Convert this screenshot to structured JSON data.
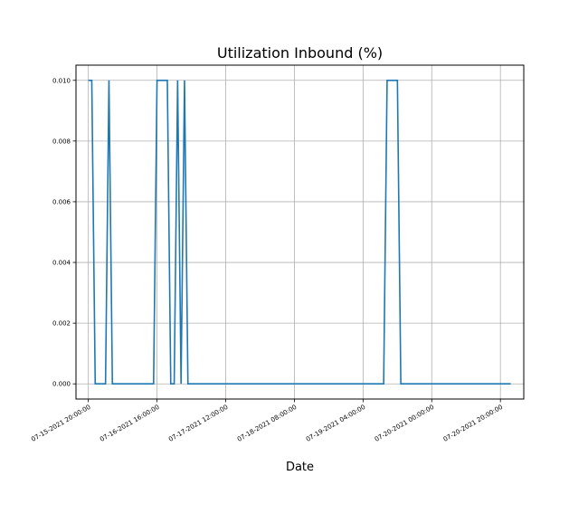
{
  "chart_data": {
    "type": "line",
    "title": "Utilization Inbound (%)",
    "xlabel": "Date",
    "ylabel": "",
    "ylim": [
      -0.0005,
      0.0105
    ],
    "xlim": [
      "07-15-2021 16:24",
      "07-21-2021 02:48"
    ],
    "yticks": [
      0.0,
      0.002,
      0.004,
      0.006,
      0.008,
      0.01
    ],
    "ytick_labels": [
      "0.000",
      "0.002",
      "0.004",
      "0.006",
      "0.008",
      "0.010"
    ],
    "xticks": [
      "07-15-2021 20:00",
      "07-16-2021 16:00",
      "07-17-2021 12:00",
      "07-18-2021 08:00",
      "07-19-2021 04:00",
      "07-20-2021 00:00",
      "07-20-2021 20:00",
      "07-21-2021 16:00"
    ],
    "xtick_labels": [
      "07-15-2021 20:00:00",
      "07-16-2021 16:00:00",
      "07-17-2021 12:00:00",
      "07-18-2021 08:00:00",
      "07-19-2021 04:00:00",
      "07-20-2021 00:00:00",
      "07-20-2021 20:00:00",
      ""
    ],
    "grid": true,
    "series": [
      {
        "color": "#1f77b4",
        "points": [
          [
            "07-15-2021 20:00",
            0.01
          ],
          [
            "07-15-2021 21:00",
            0.01
          ],
          [
            "07-15-2021 22:00",
            0.0
          ],
          [
            "07-16-2021 01:00",
            0.0
          ],
          [
            "07-16-2021 02:00",
            0.01
          ],
          [
            "07-16-2021 03:00",
            0.0
          ],
          [
            "07-16-2021 15:00",
            0.0
          ],
          [
            "07-16-2021 16:00",
            0.01
          ],
          [
            "07-16-2021 19:00",
            0.01
          ],
          [
            "07-16-2021 20:00",
            0.0
          ],
          [
            "07-16-2021 21:00",
            0.0
          ],
          [
            "07-16-2021 22:00",
            0.01
          ],
          [
            "07-16-2021 23:00",
            0.0
          ],
          [
            "07-17-2021 00:00",
            0.01
          ],
          [
            "07-17-2021 01:00",
            0.0
          ],
          [
            "07-19-2021 10:00",
            0.0
          ],
          [
            "07-19-2021 11:00",
            0.01
          ],
          [
            "07-19-2021 14:00",
            0.01
          ],
          [
            "07-19-2021 15:00",
            0.0
          ],
          [
            "07-20-2021 23:00",
            0.0
          ]
        ]
      }
    ]
  }
}
